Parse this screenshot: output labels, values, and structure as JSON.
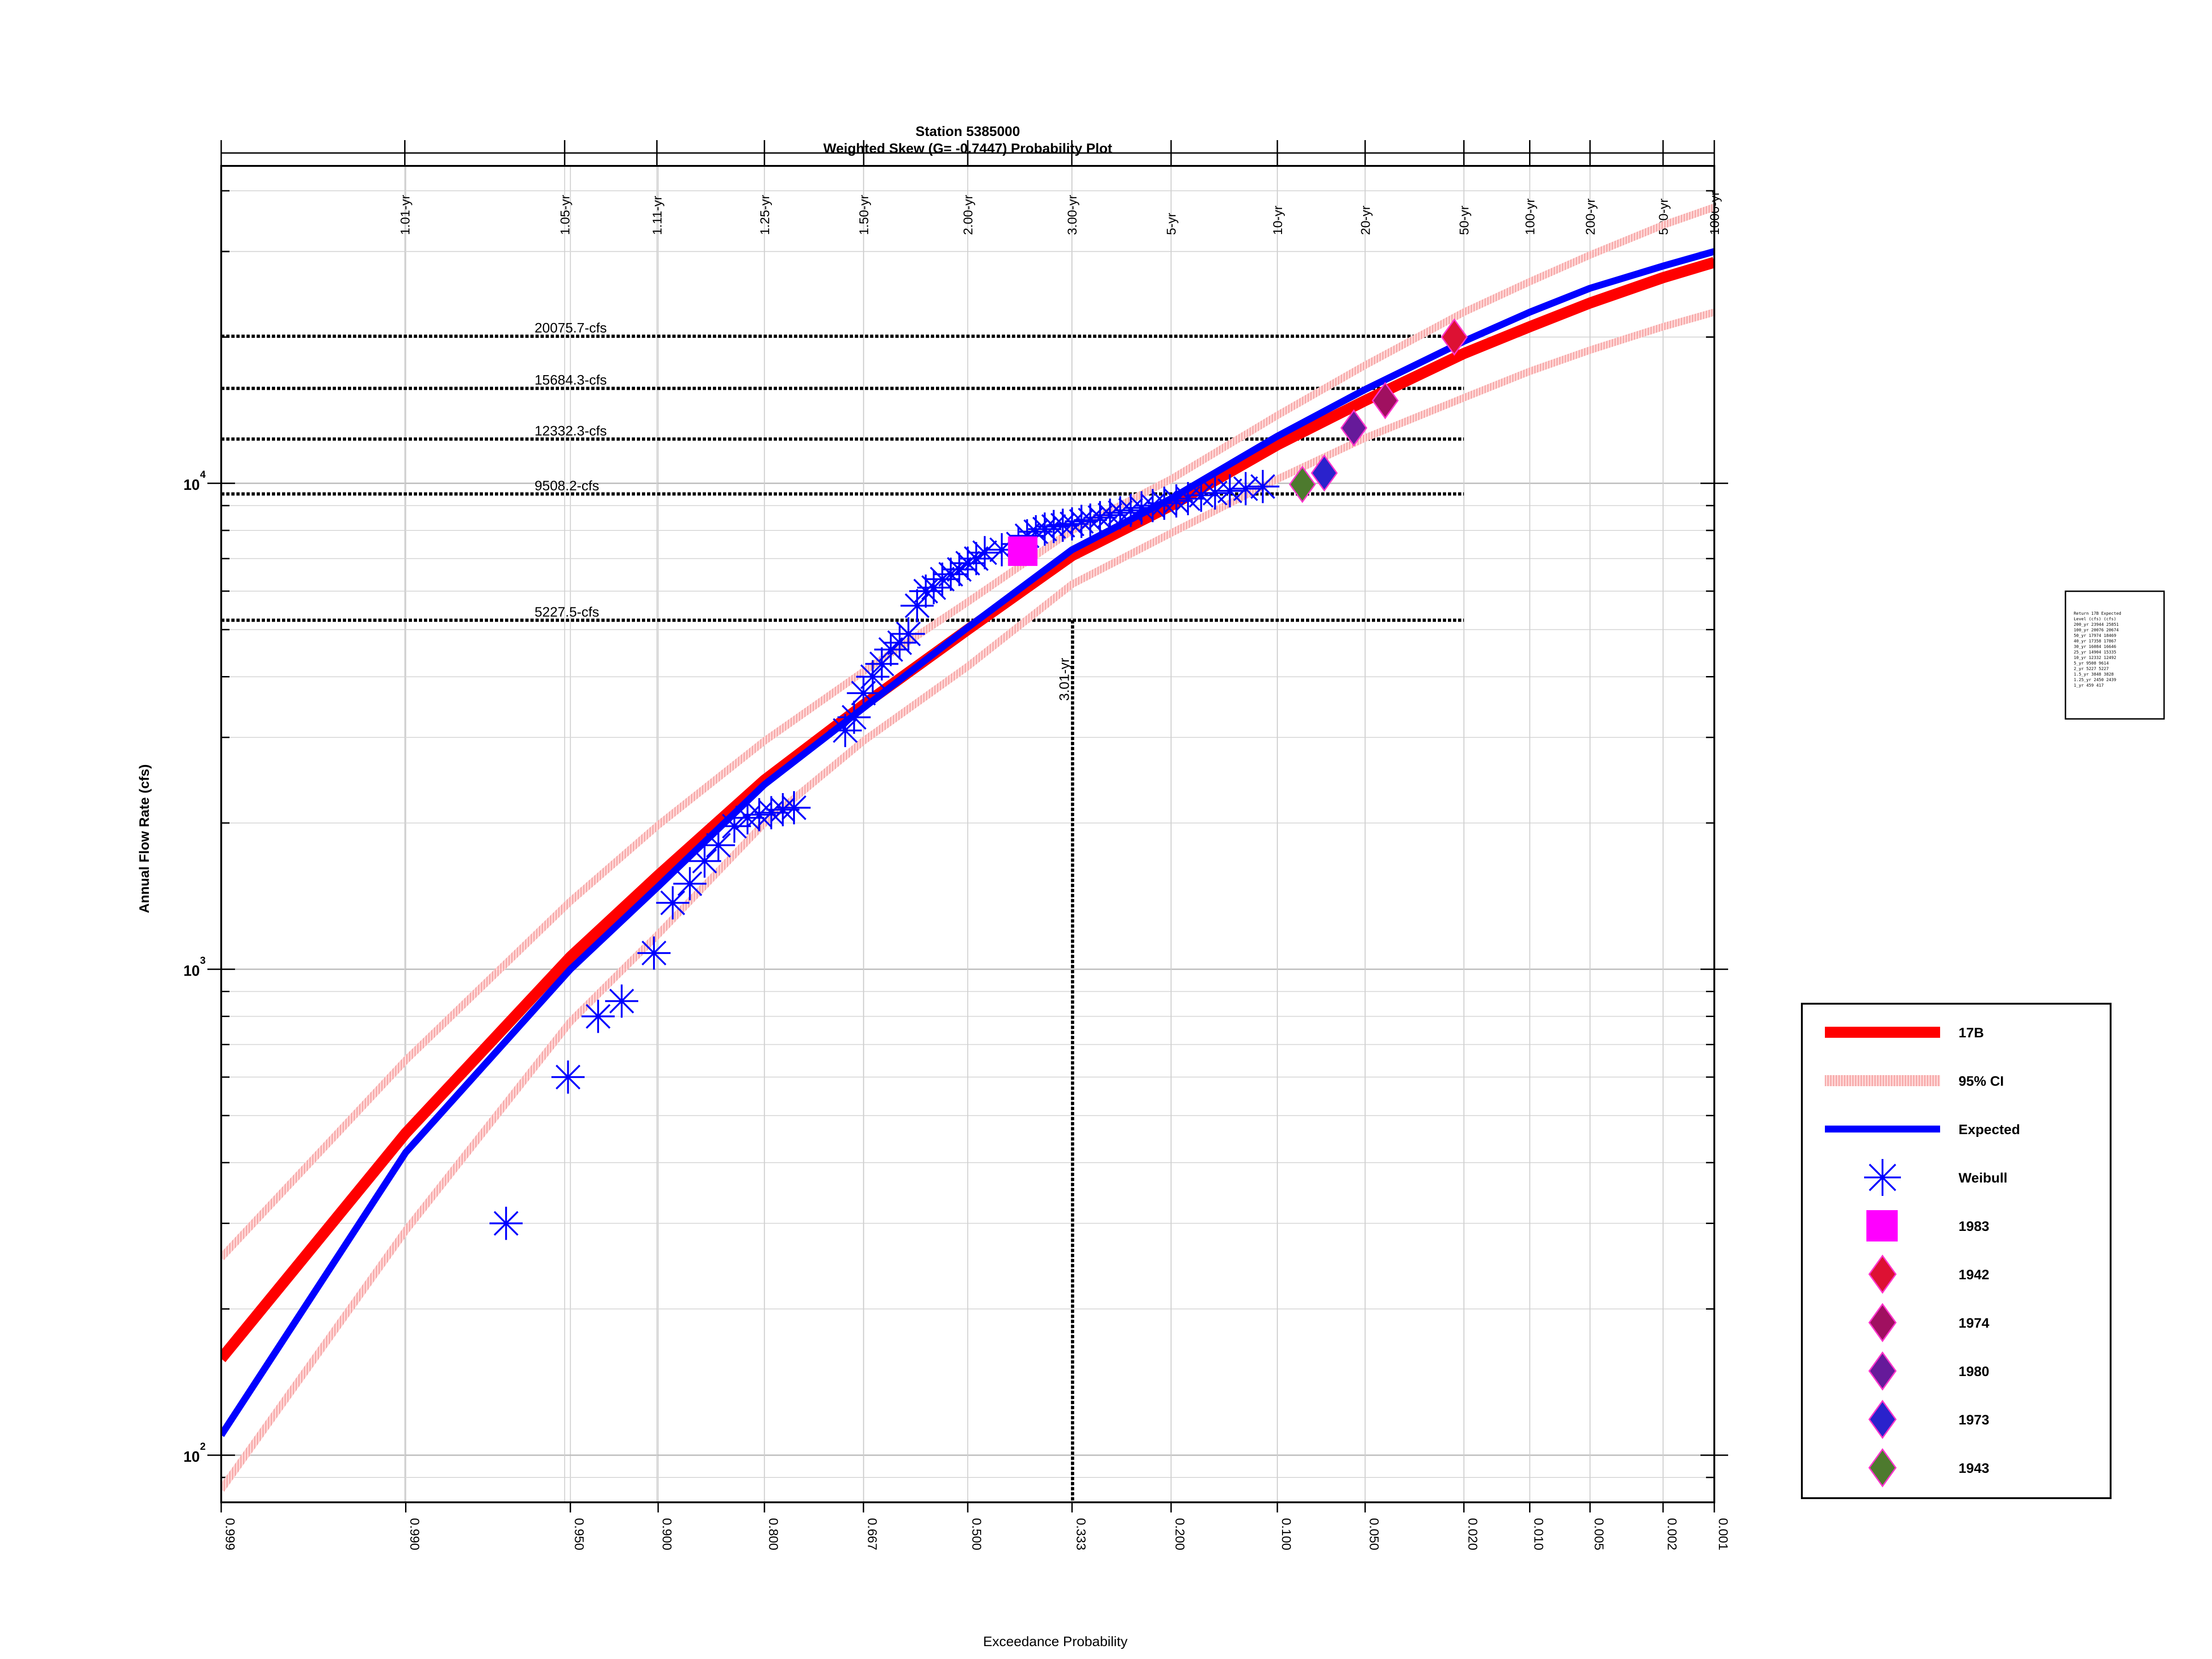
{
  "chart_data": {
    "type": "scatter",
    "title": "Station 5385000",
    "subtitle": "Weighted Skew (G= -0.7447) Probability Plot",
    "xlabel": "Exceedance Probability",
    "ylabel": "Annual Flow Rate (cfs)",
    "y_scale": "log",
    "x_scale": "normal-probability",
    "xlim": [
      0.999,
      0.001
    ],
    "ylim": [
      80,
      45000
    ],
    "grid": true,
    "x_ticks": [
      "0.999",
      "0.990",
      "0.950",
      "0.900",
      "0.800",
      "0.667",
      "0.500",
      "0.333",
      "0.200",
      "0.100",
      "0.050",
      "0.020",
      "0.010",
      "0.005",
      "0.002",
      "0.001"
    ],
    "y_ticks": [
      {
        "base": "10",
        "exp": "2",
        "value": 100
      },
      {
        "base": "10",
        "exp": "3",
        "value": 1000
      },
      {
        "base": "10",
        "exp": "4",
        "value": 10000
      }
    ],
    "return_period_ticks": [
      {
        "label": "1.01-yr",
        "p": 0.9901
      },
      {
        "label": "1.05-yr",
        "p": 0.9524
      },
      {
        "label": "1.11-yr",
        "p": 0.9009
      },
      {
        "label": "1.25-yr",
        "p": 0.8
      },
      {
        "label": "1.50-yr",
        "p": 0.6667
      },
      {
        "label": "2.00-yr",
        "p": 0.5
      },
      {
        "label": "3.00-yr",
        "p": 0.3333
      },
      {
        "label": "5-yr",
        "p": 0.2
      },
      {
        "label": "10-yr",
        "p": 0.1
      },
      {
        "label": "20-yr",
        "p": 0.05
      },
      {
        "label": "50-yr",
        "p": 0.02
      },
      {
        "label": "100-yr",
        "p": 0.01
      },
      {
        "label": "200-yr",
        "p": 0.005
      },
      {
        "label": "500-yr",
        "p": 0.002
      },
      {
        "label": "1000-yr",
        "p": 0.001
      }
    ],
    "reference_flows": [
      {
        "label": "20075.7-cfs",
        "value": 20075.7
      },
      {
        "label": "15684.3-cfs",
        "value": 15684.3
      },
      {
        "label": "12332.3-cfs",
        "value": 12332.3
      },
      {
        "label": "9508.2-cfs",
        "value": 9508.2
      },
      {
        "label": "5227.5-cfs",
        "value": 5227.5
      }
    ],
    "vertical_marker": {
      "label": "3.01-yr",
      "p": 0.3322,
      "y_top": 5227.5
    },
    "series": [
      {
        "name": "17B",
        "kind": "line",
        "color": "#ff0000",
        "points": [
          [
            0.999,
            158
          ],
          [
            0.99,
            460
          ],
          [
            0.95,
            1060
          ],
          [
            0.9,
            1560
          ],
          [
            0.8,
            2450
          ],
          [
            0.667,
            3500
          ],
          [
            0.5,
            5000
          ],
          [
            0.333,
            7100
          ],
          [
            0.2,
            9000
          ],
          [
            0.1,
            12000
          ],
          [
            0.05,
            14800
          ],
          [
            0.02,
            18500
          ],
          [
            0.01,
            21000
          ],
          [
            0.005,
            23500
          ],
          [
            0.002,
            26500
          ],
          [
            0.001,
            28500
          ]
        ]
      },
      {
        "name": "95% CI",
        "kind": "band",
        "color": "#f4a6a6",
        "upper": [
          [
            0.999,
            255
          ],
          [
            0.99,
            650
          ],
          [
            0.95,
            1380
          ],
          [
            0.9,
            1980
          ],
          [
            0.8,
            2950
          ],
          [
            0.667,
            4100
          ],
          [
            0.5,
            5700
          ],
          [
            0.333,
            8000
          ],
          [
            0.2,
            10200
          ],
          [
            0.1,
            13800
          ],
          [
            0.05,
            17500
          ],
          [
            0.02,
            22500
          ],
          [
            0.01,
            26000
          ],
          [
            0.005,
            29500
          ],
          [
            0.002,
            34000
          ],
          [
            0.001,
            37000
          ]
        ],
        "lower": [
          [
            0.999,
            85
          ],
          [
            0.99,
            290
          ],
          [
            0.95,
            780
          ],
          [
            0.9,
            1180
          ],
          [
            0.8,
            2000
          ],
          [
            0.667,
            2950
          ],
          [
            0.5,
            4200
          ],
          [
            0.333,
            6200
          ],
          [
            0.2,
            7900
          ],
          [
            0.1,
            10200
          ],
          [
            0.05,
            12400
          ],
          [
            0.02,
            15000
          ],
          [
            0.01,
            17000
          ],
          [
            0.005,
            18800
          ],
          [
            0.002,
            21000
          ],
          [
            0.001,
            22500
          ]
        ]
      },
      {
        "name": "Expected",
        "kind": "line",
        "color": "#0000ff",
        "points": [
          [
            0.999,
            110
          ],
          [
            0.99,
            420
          ],
          [
            0.95,
            1000
          ],
          [
            0.9,
            1480
          ],
          [
            0.8,
            2400
          ],
          [
            0.667,
            3450
          ],
          [
            0.5,
            5050
          ],
          [
            0.333,
            7300
          ],
          [
            0.2,
            9300
          ],
          [
            0.1,
            12500
          ],
          [
            0.05,
            15600
          ],
          [
            0.02,
            19600
          ],
          [
            0.01,
            22500
          ],
          [
            0.005,
            25200
          ],
          [
            0.002,
            28000
          ],
          [
            0.001,
            30000
          ]
        ]
      },
      {
        "name": "Weibull",
        "kind": "scatter",
        "color": "#0000ff",
        "points": [
          [
            0.972,
            300
          ],
          [
            0.951,
            600
          ],
          [
            0.937,
            800
          ],
          [
            0.924,
            860
          ],
          [
            0.903,
            1080
          ],
          [
            0.889,
            1370
          ],
          [
            0.875,
            1500
          ],
          [
            0.862,
            1670
          ],
          [
            0.849,
            1800
          ],
          [
            0.833,
            1970
          ],
          [
            0.819,
            2050
          ],
          [
            0.806,
            2080
          ],
          [
            0.792,
            2100
          ],
          [
            0.778,
            2130
          ],
          [
            0.764,
            2150
          ],
          [
            0.694,
            3100
          ],
          [
            0.681,
            3300
          ],
          [
            0.667,
            3700
          ],
          [
            0.653,
            4000
          ],
          [
            0.639,
            4250
          ],
          [
            0.625,
            4550
          ],
          [
            0.611,
            4700
          ],
          [
            0.597,
            4900
          ],
          [
            0.583,
            5600
          ],
          [
            0.569,
            6000
          ],
          [
            0.556,
            6100
          ],
          [
            0.542,
            6350
          ],
          [
            0.528,
            6500
          ],
          [
            0.514,
            6650
          ],
          [
            0.5,
            6850
          ],
          [
            0.486,
            7000
          ],
          [
            0.472,
            7200
          ],
          [
            0.444,
            7300
          ],
          [
            0.417,
            7500
          ],
          [
            0.403,
            7800
          ],
          [
            0.389,
            7950
          ],
          [
            0.375,
            8050
          ],
          [
            0.361,
            8150
          ],
          [
            0.347,
            8200
          ],
          [
            0.333,
            8250
          ],
          [
            0.319,
            8350
          ],
          [
            0.306,
            8400
          ],
          [
            0.292,
            8500
          ],
          [
            0.278,
            8600
          ],
          [
            0.264,
            8700
          ],
          [
            0.25,
            8800
          ],
          [
            0.236,
            8900
          ],
          [
            0.222,
            9000
          ],
          [
            0.208,
            9100
          ],
          [
            0.194,
            9200
          ],
          [
            0.181,
            9300
          ],
          [
            0.167,
            9450
          ],
          [
            0.153,
            9550
          ],
          [
            0.139,
            9650
          ],
          [
            0.125,
            9750
          ],
          [
            0.111,
            9850
          ]
        ]
      },
      {
        "name": "1983",
        "kind": "marker",
        "shape": "square",
        "color": "#ff00ff",
        "points": [
          [
            0.41,
            7250
          ]
        ]
      },
      {
        "name": "1942",
        "kind": "marker",
        "shape": "diamond",
        "color": "#dd1133",
        "points": [
          [
            0.022,
            20000
          ]
        ]
      },
      {
        "name": "1974",
        "kind": "marker",
        "shape": "diamond",
        "color": "#a01060",
        "points": [
          [
            0.042,
            14800
          ]
        ]
      },
      {
        "name": "1980",
        "kind": "marker",
        "shape": "diamond",
        "color": "#661a9a",
        "points": [
          [
            0.055,
            13000
          ]
        ]
      },
      {
        "name": "1973",
        "kind": "marker",
        "shape": "diamond",
        "color": "#2a22cc",
        "points": [
          [
            0.07,
            10500
          ]
        ]
      },
      {
        "name": "1943",
        "kind": "marker",
        "shape": "diamond",
        "color": "#4d7a2e",
        "points": [
          [
            0.083,
            9950
          ]
        ]
      }
    ],
    "legend": {
      "placement": "right",
      "entries": [
        "17B",
        "95% CI",
        "Expected",
        "Weibull",
        "1983",
        "1942",
        "1974",
        "1980",
        "1973",
        "1943"
      ]
    }
  }
}
